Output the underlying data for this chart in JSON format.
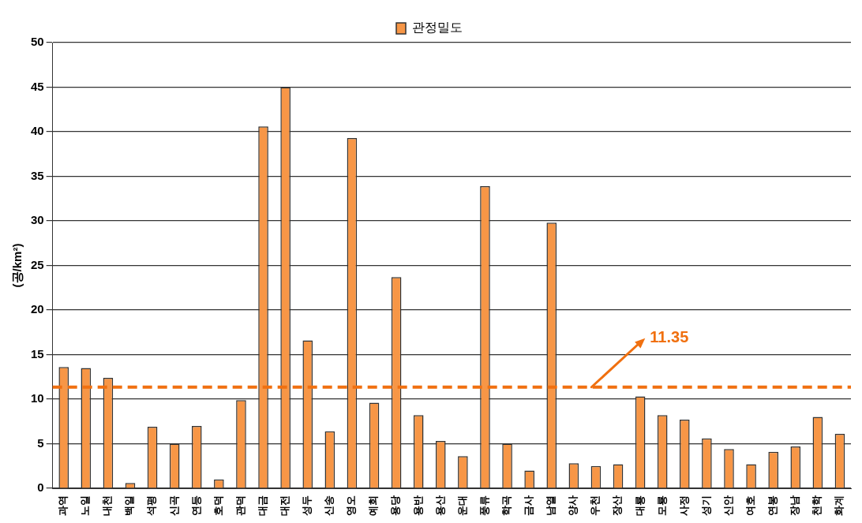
{
  "chart_data": {
    "type": "bar",
    "ylabel": "(공/km²)",
    "categories": [
      "과역",
      "노일",
      "내천",
      "백일",
      "석평",
      "신곡",
      "연등",
      "호덕",
      "관덕",
      "대금",
      "대전",
      "성두",
      "신송",
      "영오",
      "예회",
      "용당",
      "용반",
      "용산",
      "운대",
      "풍류",
      "학곡",
      "금사",
      "남열",
      "양사",
      "우천",
      "장산",
      "대룡",
      "모룡",
      "사정",
      "성기",
      "신안",
      "여호",
      "연봉",
      "장남",
      "천학",
      "화계"
    ],
    "series": [
      {
        "name": "관정밀도",
        "color": "#f79646",
        "values": [
          13.6,
          13.5,
          12.4,
          0.6,
          6.9,
          5.0,
          7.0,
          1.0,
          9.9,
          40.6,
          45.0,
          16.6,
          6.4,
          39.3,
          9.6,
          23.7,
          8.2,
          5.3,
          3.6,
          33.9,
          5.0,
          2.0,
          29.8,
          2.8,
          2.5,
          2.7,
          10.3,
          8.2,
          7.7,
          5.6,
          4.4,
          2.7,
          4.1,
          4.7,
          8.0,
          6.1
        ]
      }
    ],
    "ylim": [
      0,
      50
    ],
    "yticks": [
      0,
      5,
      10,
      15,
      20,
      25,
      30,
      35,
      40,
      45,
      50
    ],
    "grid": "y",
    "legend": "top",
    "ref_lines": [
      {
        "axis": "y",
        "value": 11.35,
        "label": "11.35",
        "color": "#f07010",
        "line_style": "dashed"
      }
    ]
  }
}
